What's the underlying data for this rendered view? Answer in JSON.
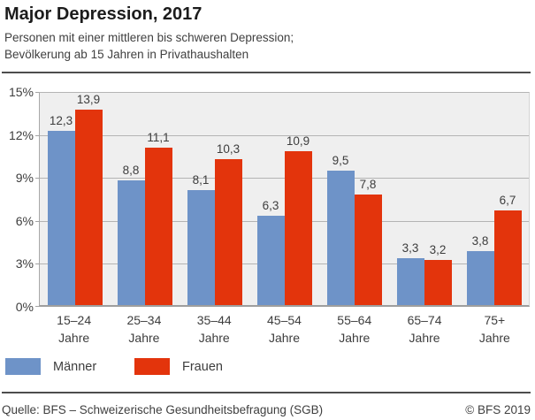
{
  "header": {
    "title": "Major Depression, 2017",
    "subtitle_line1": "Personen mit einer mittleren bis schweren Depression;",
    "subtitle_line2": "Bevölkerung ab 15 Jahren in Privathaushalten"
  },
  "chart_data": {
    "type": "bar",
    "categories": [
      "15–24",
      "25–34",
      "35–44",
      "45–54",
      "55–64",
      "65–74",
      "75+"
    ],
    "category_suffix": "Jahre",
    "series": [
      {
        "name": "Männer",
        "color": "#6e93c8",
        "values": [
          12.3,
          8.8,
          8.1,
          6.3,
          9.5,
          3.3,
          3.8
        ],
        "labels": [
          "12,3",
          "8,8",
          "8,1",
          "6,3",
          "9,5",
          "3,3",
          "3,8"
        ]
      },
      {
        "name": "Frauen",
        "color": "#e3340c",
        "values": [
          13.9,
          11.1,
          10.3,
          10.9,
          7.8,
          3.2,
          6.7
        ],
        "labels": [
          "13,9",
          "11,1",
          "10,3",
          "10,9",
          "7,8",
          "3,2",
          "6,7"
        ]
      }
    ],
    "ylim": [
      0,
      15
    ],
    "yticks": [
      {
        "value": 0,
        "label": "0%"
      },
      {
        "value": 3,
        "label": "3%"
      },
      {
        "value": 6,
        "label": "6%"
      },
      {
        "value": 9,
        "label": "9%"
      },
      {
        "value": 12,
        "label": "12%"
      },
      {
        "value": 15,
        "label": "15%"
      }
    ],
    "grid": true,
    "legend_position": "bottom",
    "plot_bg": "#efefef"
  },
  "footer": {
    "source": "Quelle: BFS – Schweizerische Gesundheitsbefragung (SGB)",
    "copyright": "© BFS 2019"
  }
}
